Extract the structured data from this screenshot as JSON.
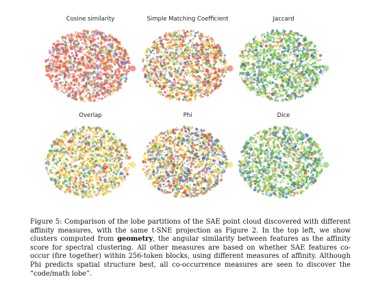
{
  "figure": {
    "panels": [
      {
        "title": "Cosine similarity",
        "palette": [
          "#e8453c",
          "#ef6b5e",
          "#f28b7d",
          "#d9a23a",
          "#4a7bd0",
          "#3da84a",
          "#f0d23a"
        ],
        "weights": [
          34,
          18,
          10,
          8,
          14,
          8,
          8
        ]
      },
      {
        "title": "Simple Matching Coefficient",
        "palette": [
          "#e8453c",
          "#ef6b5e",
          "#f0d23a",
          "#e9c42b",
          "#4a7bd0",
          "#3da84a",
          "#9cd04a"
        ],
        "weights": [
          24,
          10,
          22,
          10,
          14,
          10,
          10
        ]
      },
      {
        "title": "Jaccard",
        "palette": [
          "#6cc24a",
          "#9cd04a",
          "#3da84a",
          "#f0d23a",
          "#4a7bd0",
          "#e8453c",
          "#2f5fb8"
        ],
        "weights": [
          26,
          20,
          14,
          10,
          16,
          6,
          8
        ]
      },
      {
        "title": "Overlap",
        "palette": [
          "#f0d23a",
          "#e9c42b",
          "#f5e36a",
          "#e8453c",
          "#4a7bd0",
          "#3da84a",
          "#ef8b4e"
        ],
        "weights": [
          30,
          14,
          10,
          10,
          16,
          12,
          8
        ]
      },
      {
        "title": "Phi",
        "palette": [
          "#f0d23a",
          "#e9c42b",
          "#e8453c",
          "#4a7bd0",
          "#3da84a",
          "#2f5fb8",
          "#ef6b5e"
        ],
        "weights": [
          24,
          12,
          16,
          18,
          12,
          10,
          8
        ]
      },
      {
        "title": "Dice",
        "palette": [
          "#6cc24a",
          "#9cd04a",
          "#3da84a",
          "#f0d23a",
          "#4a7bd0",
          "#e8453c",
          "#2f5fb8"
        ],
        "weights": [
          26,
          20,
          14,
          10,
          16,
          6,
          8
        ]
      }
    ]
  },
  "caption": {
    "prefix": "Figure 5: Comparison of the lobe partitions of the SAE point cloud discovered with different affinity measures, with the same t-SNE projection as Figure 2. In the top left, we show clusters computed from ",
    "bold": "geometry",
    "suffix": ", the angular similarity between features as the affinity score for spectral clustering. All other measures are based on whether SAE features co-occur (fire together) within 256-token blocks, using different measures of affinity. Although Phi predicts spatial structure best, all co-occurrence measures are seen to discover the “code/math lobe”."
  }
}
